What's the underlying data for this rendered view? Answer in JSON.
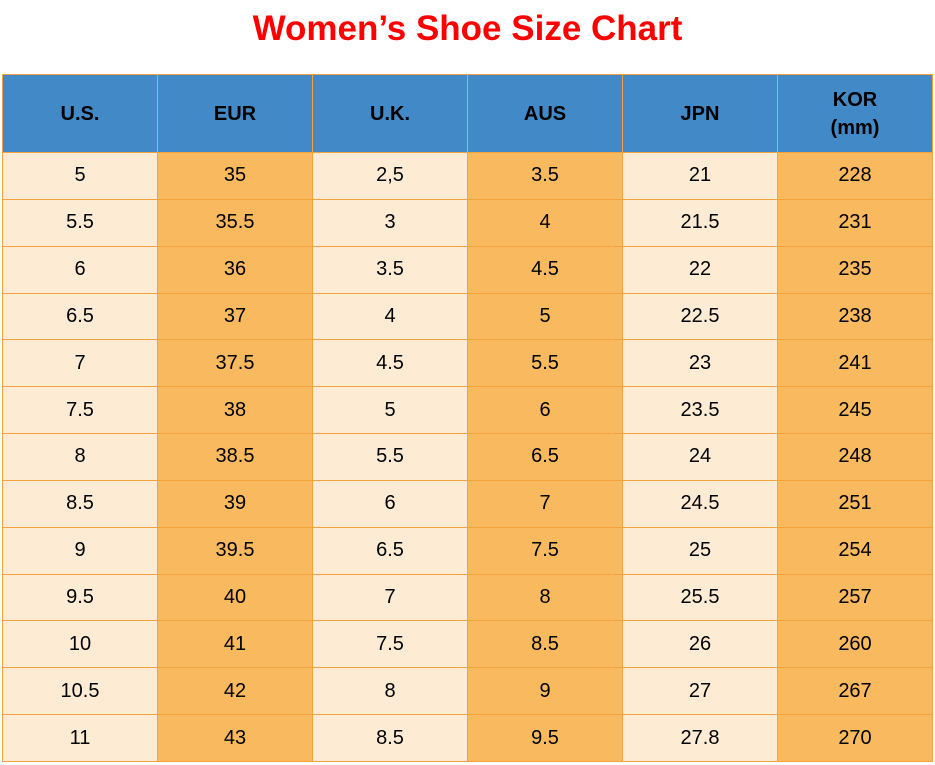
{
  "title": "Women’s Shoe Size Chart",
  "colors": {
    "title_red": "#fe0000",
    "header_blue": "#4289c7",
    "cell_light": "#fdecd3",
    "cell_orange": "#f9b95e",
    "border_orange": "#f5a13c"
  },
  "chart_data": {
    "type": "table",
    "title": "Women’s Shoe Size Chart",
    "columns": [
      "U.S.",
      "EUR",
      "U.K.",
      "AUS",
      "JPN",
      "KOR (mm)"
    ],
    "rows": [
      [
        "5",
        "35",
        "2,5",
        "3.5",
        "21",
        "228"
      ],
      [
        "5.5",
        "35.5",
        "3",
        "4",
        "21.5",
        "231"
      ],
      [
        "6",
        "36",
        "3.5",
        "4.5",
        "22",
        "235"
      ],
      [
        "6.5",
        "37",
        "4",
        "5",
        "22.5",
        "238"
      ],
      [
        "7",
        "37.5",
        "4.5",
        "5.5",
        "23",
        "241"
      ],
      [
        "7.5",
        "38",
        "5",
        "6",
        "23.5",
        "245"
      ],
      [
        "8",
        "38.5",
        "5.5",
        "6.5",
        "24",
        "248"
      ],
      [
        "8.5",
        "39",
        "6",
        "7",
        "24.5",
        "251"
      ],
      [
        "9",
        "39.5",
        "6.5",
        "7.5",
        "25",
        "254"
      ],
      [
        "9.5",
        "40",
        "7",
        "8",
        "25.5",
        "257"
      ],
      [
        "10",
        "41",
        "7.5",
        "8.5",
        "26",
        "260"
      ],
      [
        "10.5",
        "42",
        "8",
        "9",
        "27",
        "267"
      ],
      [
        "11",
        "43",
        "8.5",
        "9.5",
        "27.8",
        "270"
      ]
    ]
  },
  "table": {
    "headers": [
      {
        "label": "U.S.",
        "lines": [
          "U.S."
        ]
      },
      {
        "label": "EUR",
        "lines": [
          "EUR"
        ]
      },
      {
        "label": "U.K.",
        "lines": [
          "U.K."
        ]
      },
      {
        "label": "AUS",
        "lines": [
          "AUS"
        ]
      },
      {
        "label": "JPN",
        "lines": [
          "JPN"
        ]
      },
      {
        "label": "KOR (mm)",
        "lines": [
          "KOR",
          "(mm)"
        ]
      }
    ]
  }
}
